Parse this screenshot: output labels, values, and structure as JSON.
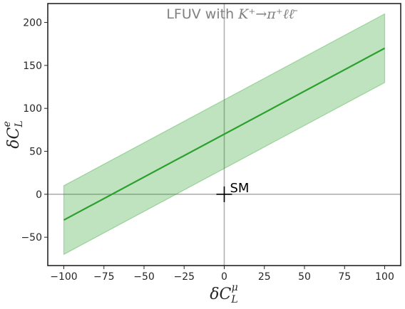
{
  "chart_data": {
    "type": "line",
    "title_prefix": "LFUV with ",
    "title_math": "K⁺→π⁺ℓℓ̄",
    "xlabel": "δC",
    "xlabel_sub": "L",
    "xlabel_sup": "μ",
    "ylabel": "δC",
    "ylabel_sub": "L",
    "ylabel_sup": "e",
    "xlim": [
      -110,
      110
    ],
    "ylim": [
      -83,
      222
    ],
    "xticks": [
      -100,
      -75,
      -50,
      -25,
      0,
      25,
      50,
      75,
      100
    ],
    "xtick_labels": [
      "−100",
      "−75",
      "−50",
      "−25",
      "0",
      "25",
      "50",
      "75",
      "100"
    ],
    "yticks": [
      -50,
      0,
      50,
      100,
      150,
      200
    ],
    "ytick_labels": [
      "−50",
      "0",
      "50",
      "100",
      "150",
      "200"
    ],
    "grid": false,
    "series": [
      {
        "x": [
          -100,
          100
        ],
        "y": [
          -30,
          170
        ],
        "band_lower": [
          -70,
          130
        ],
        "band_upper": [
          10,
          210
        ],
        "color": "#2ca02c",
        "band_color": "#2ca02c"
      }
    ],
    "reference_lines": {
      "x": 0,
      "y": 0,
      "color": "#b0b0b0"
    },
    "annotations": [
      {
        "text": "SM",
        "marker": "+",
        "x": 0,
        "y": 0
      }
    ]
  }
}
